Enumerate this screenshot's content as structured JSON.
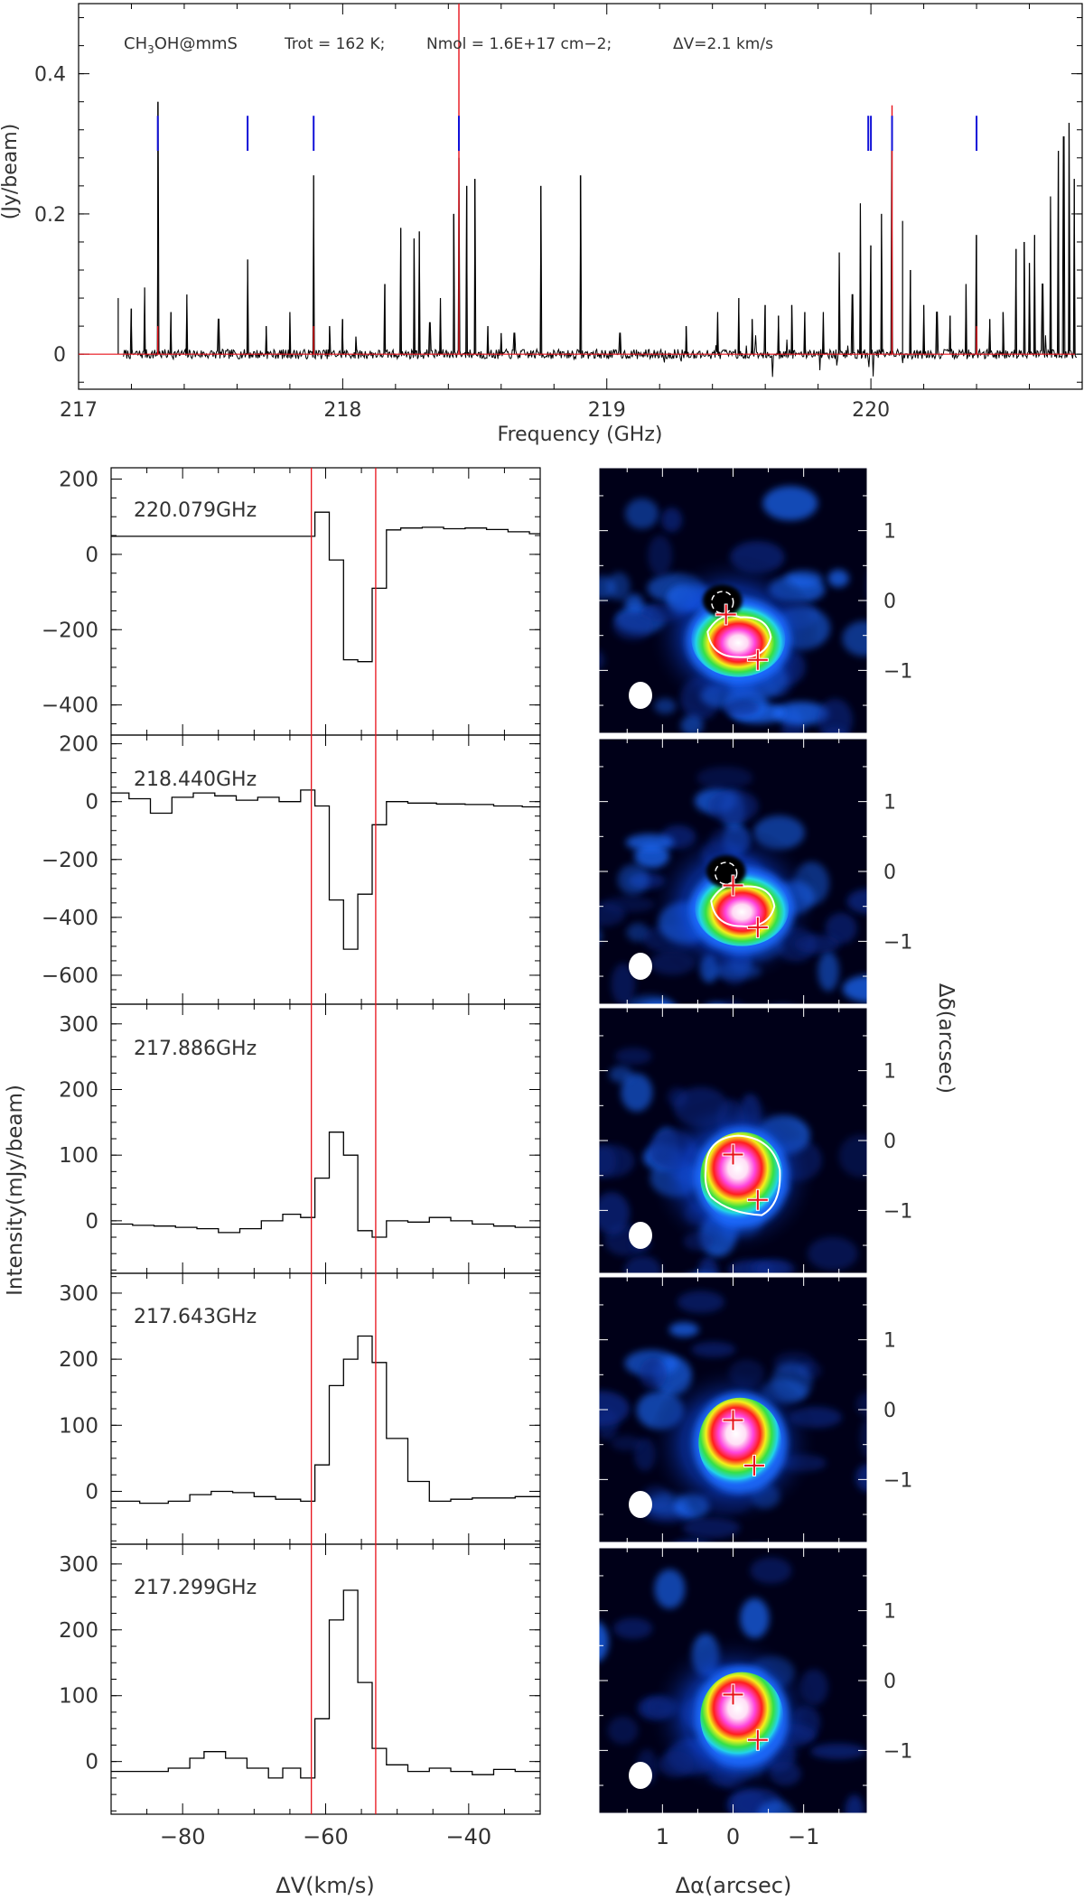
{
  "chart_data": [
    {
      "type": "line",
      "panel": "overview-spectrum",
      "annotation": {
        "species": "CH3OH@mmS",
        "trot": "Trot = 162 K;",
        "nmol": "Nmol = 1.6E+17 cm−2;",
        "dv": "ΔV=2.1 km/s"
      },
      "xlabel": "Frequency (GHz)",
      "ylabel": "(Jy/beam)",
      "xlim": [
        217.0,
        220.8
      ],
      "ylim": [
        -0.05,
        0.5
      ],
      "x_ticks": [
        217,
        218,
        219,
        220
      ],
      "y_ticks": [
        {
          "v": 0,
          "t": "0"
        },
        {
          "v": 0.2,
          "t": "0.2"
        },
        {
          "v": 0.4,
          "t": "0.4"
        }
      ],
      "observed_lines": [
        [
          217.15,
          0.08
        ],
        [
          217.2,
          0.065
        ],
        [
          217.25,
          0.095
        ],
        [
          217.3,
          0.36
        ],
        [
          217.35,
          0.06
        ],
        [
          217.41,
          0.085
        ],
        [
          217.53,
          0.05
        ],
        [
          217.64,
          0.135
        ],
        [
          217.71,
          0.04
        ],
        [
          217.8,
          0.06
        ],
        [
          217.89,
          0.255
        ],
        [
          217.95,
          0.04
        ],
        [
          218.0,
          0.05
        ],
        [
          218.05,
          0.025
        ],
        [
          218.16,
          0.1
        ],
        [
          218.22,
          0.18
        ],
        [
          218.27,
          0.165
        ],
        [
          218.29,
          0.175
        ],
        [
          218.33,
          0.045
        ],
        [
          218.37,
          0.08
        ],
        [
          218.42,
          0.2
        ],
        [
          218.44,
          0.28
        ],
        [
          218.47,
          0.24
        ],
        [
          218.5,
          0.25
        ],
        [
          218.55,
          0.04
        ],
        [
          218.6,
          0.03
        ],
        [
          218.65,
          0.03
        ],
        [
          218.75,
          0.24
        ],
        [
          218.9,
          0.255
        ],
        [
          219.05,
          0.03
        ],
        [
          219.3,
          0.04
        ],
        [
          219.42,
          0.06
        ],
        [
          219.5,
          0.08
        ],
        [
          219.55,
          0.05
        ],
        [
          219.6,
          0.07
        ],
        [
          219.65,
          0.055
        ],
        [
          219.7,
          0.07
        ],
        [
          219.75,
          0.06
        ],
        [
          219.82,
          0.06
        ],
        [
          219.88,
          0.145
        ],
        [
          219.93,
          0.085
        ],
        [
          219.96,
          0.215
        ],
        [
          220.0,
          0.155
        ],
        [
          220.04,
          0.2
        ],
        [
          220.08,
          0.3
        ],
        [
          220.12,
          0.19
        ],
        [
          220.15,
          0.12
        ],
        [
          220.2,
          0.07
        ],
        [
          220.25,
          0.06
        ],
        [
          220.3,
          0.055
        ],
        [
          220.36,
          0.1
        ],
        [
          220.4,
          0.17
        ],
        [
          220.45,
          0.05
        ],
        [
          220.5,
          0.06
        ],
        [
          220.55,
          0.15
        ],
        [
          220.58,
          0.16
        ],
        [
          220.6,
          0.13
        ],
        [
          220.62,
          0.17
        ],
        [
          220.65,
          0.1
        ],
        [
          220.68,
          0.225
        ],
        [
          220.71,
          0.29
        ],
        [
          220.73,
          0.31
        ],
        [
          220.75,
          0.33
        ],
        [
          220.77,
          0.25
        ]
      ],
      "model_lines": [
        [
          217.3,
          0.04
        ],
        [
          217.89,
          0.04
        ],
        [
          218.44,
          0.5
        ],
        [
          220.08,
          0.355
        ],
        [
          220.4,
          0.04
        ]
      ],
      "transition_markers": [
        217.3,
        217.64,
        217.89,
        218.44,
        219.99,
        220.0,
        220.08,
        220.4
      ]
    },
    {
      "type": "line",
      "panel": "spectrum-220.079",
      "label": "220.079GHz",
      "xlim": [
        -90,
        -30
      ],
      "ylim": [
        -480,
        230
      ],
      "y_ticks": [
        {
          "v": 200,
          "t": "200"
        },
        {
          "v": 0,
          "t": "0"
        },
        {
          "v": -200,
          "t": "−200"
        },
        {
          "v": -400,
          "t": "−400"
        }
      ],
      "x": [
        -90,
        -63.5,
        -61.5,
        -59.5,
        -57.5,
        -55.5,
        -53.5,
        -51.5,
        -49.5,
        -46.5,
        -43.5,
        -40.5,
        -37.5,
        -34.5,
        -31.5
      ],
      "values": [
        48,
        48,
        112,
        -15,
        -280,
        -285,
        -90,
        65,
        70,
        72,
        68,
        70,
        66,
        60,
        55
      ]
    },
    {
      "type": "line",
      "panel": "spectrum-218.440",
      "label": "218.440GHz",
      "xlim": [
        -90,
        -30
      ],
      "ylim": [
        -700,
        230
      ],
      "y_ticks": [
        {
          "v": 200,
          "t": "200"
        },
        {
          "v": 0,
          "t": "0"
        },
        {
          "v": -200,
          "t": "−200"
        },
        {
          "v": -400,
          "t": "−400"
        },
        {
          "v": -600,
          "t": "−600"
        }
      ],
      "x": [
        -90,
        -87.5,
        -84.5,
        -81.5,
        -78.5,
        -75.5,
        -72.5,
        -69.5,
        -66.5,
        -63.5,
        -61.5,
        -59.5,
        -57.5,
        -55.5,
        -53.5,
        -51.5,
        -48.5,
        -44.5,
        -40.5,
        -36.5,
        -32.5
      ],
      "values": [
        30,
        10,
        -40,
        15,
        30,
        20,
        5,
        15,
        0,
        40,
        -15,
        -340,
        -510,
        -320,
        -80,
        0,
        -5,
        -8,
        -10,
        -15,
        -18
      ]
    },
    {
      "type": "line",
      "panel": "spectrum-217.886",
      "label": "217.886GHz",
      "xlim": [
        -90,
        -30
      ],
      "ylim": [
        -80,
        330
      ],
      "y_ticks": [
        {
          "v": 300,
          "t": "300"
        },
        {
          "v": 200,
          "t": "200"
        },
        {
          "v": 100,
          "t": "100"
        },
        {
          "v": 0,
          "t": "0"
        }
      ],
      "x": [
        -90,
        -87,
        -84,
        -81,
        -78,
        -75,
        -72,
        -69,
        -66,
        -63.5,
        -61.5,
        -59.5,
        -57.5,
        -55.5,
        -53.5,
        -51.5,
        -48.5,
        -45.5,
        -42.5,
        -39.5,
        -36.5,
        -33.5
      ],
      "values": [
        -5,
        -7,
        -8,
        -10,
        -12,
        -18,
        -12,
        0,
        10,
        5,
        65,
        135,
        100,
        -15,
        -25,
        0,
        -2,
        5,
        0,
        -5,
        -8,
        -10
      ]
    },
    {
      "type": "line",
      "panel": "spectrum-217.643",
      "label": "217.643GHz",
      "xlim": [
        -90,
        -30
      ],
      "ylim": [
        -80,
        330
      ],
      "y_ticks": [
        {
          "v": 300,
          "t": "300"
        },
        {
          "v": 200,
          "t": "200"
        },
        {
          "v": 100,
          "t": "100"
        },
        {
          "v": 0,
          "t": "0"
        }
      ],
      "x": [
        -90,
        -86,
        -82,
        -79,
        -76,
        -73,
        -70,
        -67,
        -63.5,
        -61.5,
        -59.5,
        -57.5,
        -55.5,
        -53.5,
        -51.5,
        -48.5,
        -45.5,
        -42.5,
        -39.5,
        -36.5,
        -33.5
      ],
      "values": [
        -15,
        -18,
        -15,
        -5,
        0,
        -2,
        -8,
        -12,
        -15,
        40,
        160,
        200,
        235,
        195,
        80,
        15,
        -15,
        -12,
        -10,
        -10,
        -8
      ]
    },
    {
      "type": "line",
      "panel": "spectrum-217.299",
      "label": "217.299GHz",
      "xlim": [
        -90,
        -30
      ],
      "ylim": [
        -80,
        330
      ],
      "y_ticks": [
        {
          "v": 300,
          "t": "300"
        },
        {
          "v": 200,
          "t": "200"
        },
        {
          "v": 100,
          "t": "100"
        },
        {
          "v": 0,
          "t": "0"
        }
      ],
      "x": [
        -90,
        -86,
        -82,
        -79,
        -77,
        -74,
        -71,
        -68,
        -66,
        -63.5,
        -61.5,
        -59.5,
        -57.5,
        -55.5,
        -53.5,
        -51.5,
        -48.5,
        -45.5,
        -42.5,
        -39.5,
        -36.5,
        -33.5
      ],
      "values": [
        -15,
        -15,
        -10,
        5,
        15,
        5,
        -10,
        -25,
        -10,
        -25,
        65,
        215,
        260,
        120,
        20,
        -5,
        -15,
        -10,
        -15,
        -20,
        -12,
        -15
      ]
    }
  ],
  "spectra_shared": {
    "xlabel": "ΔV(km/s)",
    "ylabel": "Intensity(mJy/beam)",
    "x_ticks": [
      {
        "v": -80,
        "t": "−80"
      },
      {
        "v": -60,
        "t": "−60"
      },
      {
        "v": -40,
        "t": "−40"
      }
    ],
    "velocity_markers": [
      -62,
      -53
    ]
  },
  "maps": {
    "xlabel": "Δα(arcsec)",
    "ylabel": "Δδ(arcsec)",
    "x_ticks": [
      {
        "v": 1,
        "t": "1"
      },
      {
        "v": 0,
        "t": "0"
      },
      {
        "v": -1,
        "t": "−1"
      }
    ],
    "y_ticks": [
      {
        "v": 1,
        "t": "1"
      },
      {
        "v": 0,
        "t": "0"
      },
      {
        "v": -1,
        "t": "−1"
      }
    ],
    "xlim": [
      1.9,
      -1.9
    ],
    "ylim": [
      -1.9,
      1.9
    ],
    "colors": {
      "background": "#000018",
      "low": "#0a2a8c",
      "mid": "#1e6cff",
      "cyan": "#22d4e8",
      "green": "#35e046",
      "yellow": "#f4f01a",
      "red": "#ff1e1e",
      "magenta": "#ff44dc",
      "white": "#ffffff",
      "cross": "#e8101a"
    },
    "panels": [
      {
        "kind": "absorption",
        "peak1": [
          0.1,
          -0.2
        ],
        "peak2": [
          -0.35,
          -0.85
        ],
        "hole": [
          0.15,
          0.0
        ]
      },
      {
        "kind": "absorption",
        "peak1": [
          0.0,
          -0.2
        ],
        "peak2": [
          -0.35,
          -0.8
        ],
        "hole": [
          0.1,
          0.0
        ]
      },
      {
        "kind": "emission",
        "peak1": [
          0.0,
          -0.2
        ],
        "peak2": [
          -0.35,
          -0.85
        ],
        "hole": null
      },
      {
        "kind": "emission",
        "peak1": [
          0.0,
          -0.15
        ],
        "peak2": [
          -0.3,
          -0.8
        ],
        "hole": null
      },
      {
        "kind": "emission",
        "peak1": [
          0.0,
          -0.2
        ],
        "peak2": [
          -0.35,
          -0.85
        ],
        "hole": null
      }
    ]
  }
}
